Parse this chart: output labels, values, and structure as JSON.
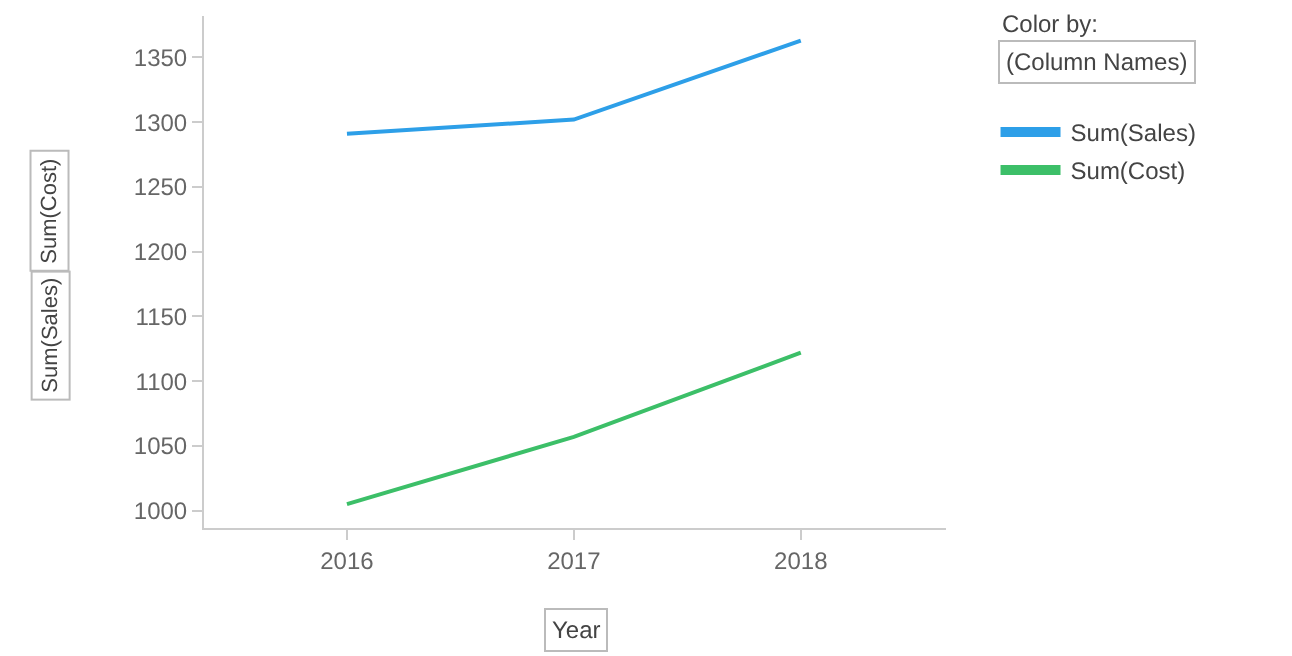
{
  "chart_data": {
    "type": "line",
    "xlabel": "Year",
    "legend_title": "Color by:",
    "x": [
      2016,
      2017,
      2018
    ],
    "series": [
      {
        "name": "Sum(Sales)",
        "color": "#2d9fe8",
        "values": [
          1291,
          1302,
          1363
        ]
      },
      {
        "name": "Sum(Cost)",
        "color": "#3cbf68",
        "values": [
          1005,
          1057,
          1122
        ]
      }
    ],
    "xlim": [
      2015.37,
      2018.64
    ],
    "xticks": [
      2016,
      2017,
      2018
    ],
    "ylim": [
      986.6,
      1382
    ],
    "yticks": [
      1000,
      1050,
      1100,
      1150,
      1200,
      1250,
      1300,
      1350
    ],
    "legend": "top right",
    "marker": "none",
    "line_style": "solid",
    "annotations": [
      "Sum(Cost)",
      "Sum(Sales)",
      "(Column Names)"
    ]
  }
}
